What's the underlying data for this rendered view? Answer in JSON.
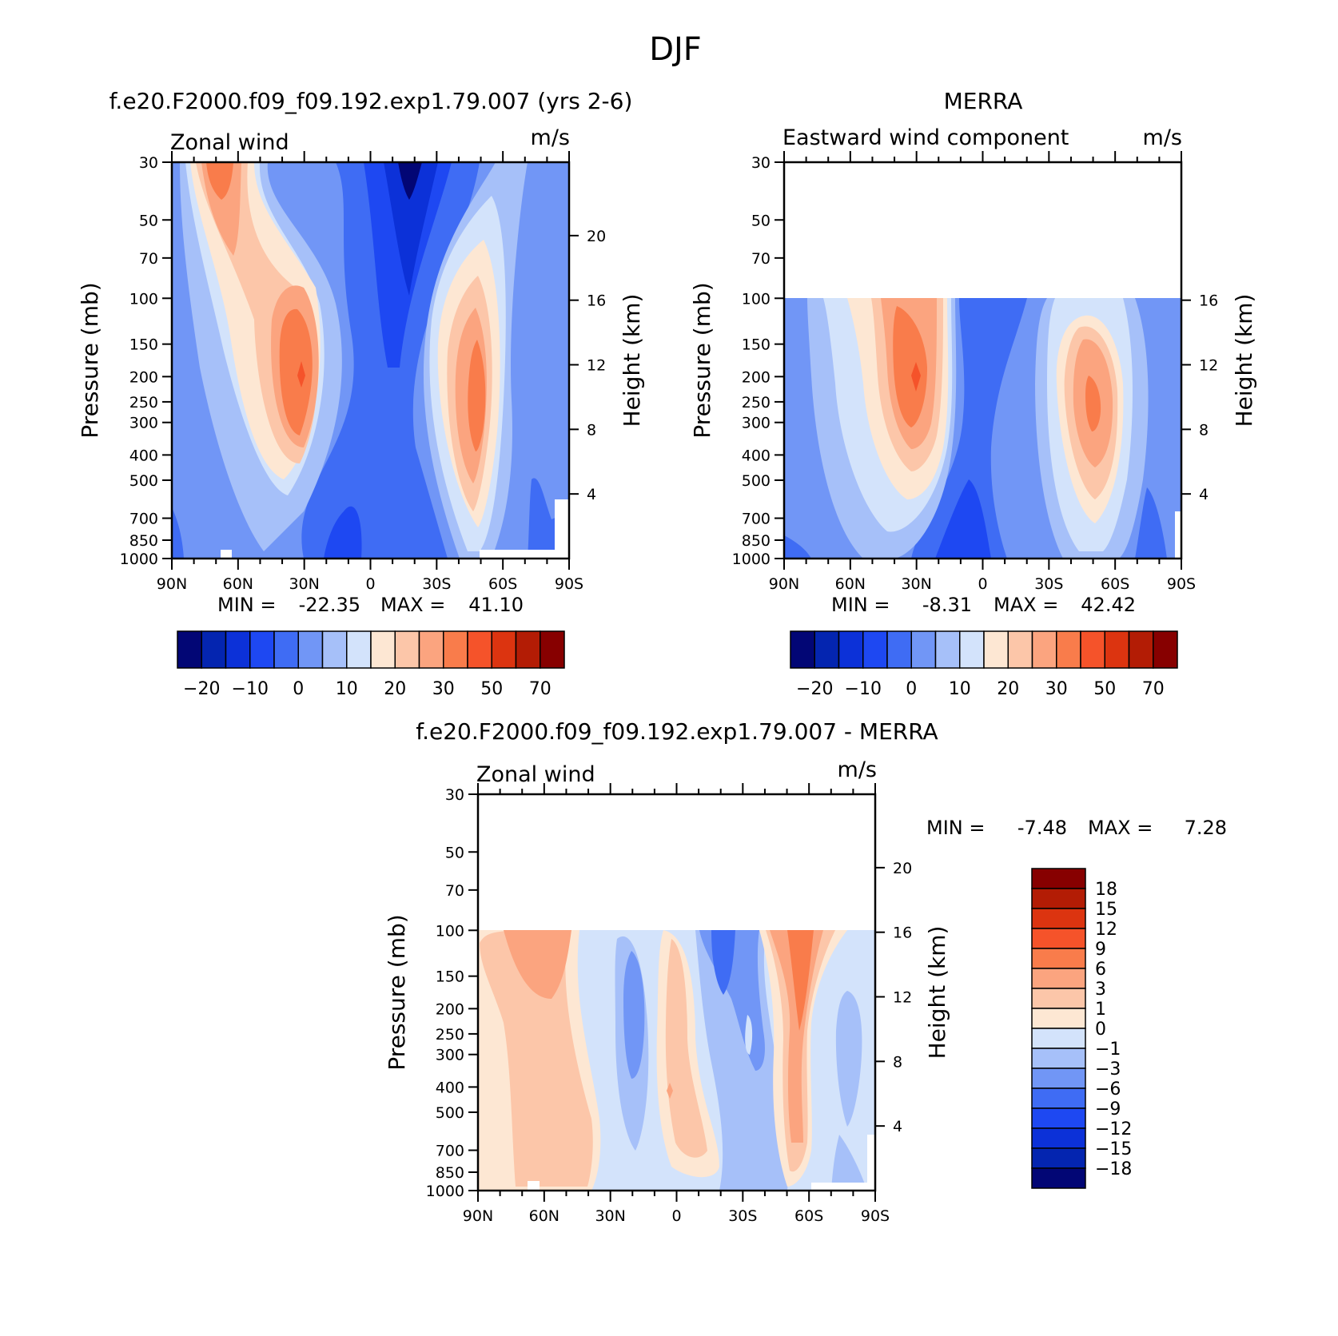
{
  "page_title": "DJF",
  "colors": {
    "neg": [
      "#020675",
      "#0425b0",
      "#0c31d8",
      "#1e48f2",
      "#3f6cf4",
      "#7196f6",
      "#a6c0f9",
      "#d3e3fb"
    ],
    "pos": [
      "#fde7d3",
      "#fcc6a9",
      "#fba47f",
      "#f97c4b",
      "#f5532a",
      "#dc3410",
      "#b31c05",
      "#870000"
    ]
  },
  "chart_data": [
    {
      "type": "heatmap",
      "panel_title": "f.e20.F2000.f09_f09.192.exp1.79.007 (yrs 2-6)",
      "left_label": "Zonal wind",
      "units": "m/s",
      "ylabel": "Pressure (mb)",
      "ylabel_right": "Height (km)",
      "y_ticks": [
        "30",
        "50",
        "70",
        "100",
        "150",
        "200",
        "250",
        "300",
        "400",
        "500",
        "700",
        "850",
        "1000"
      ],
      "y_right_ticks": [
        "20",
        "16",
        "12",
        "8",
        "4"
      ],
      "x_ticks": [
        "90N",
        "60N",
        "30N",
        "0",
        "30S",
        "60S",
        "90S"
      ],
      "min_label": "MIN =",
      "min_value": "-22.35",
      "max_label": "MAX =",
      "max_value": "41.10",
      "colorbar_labels": [
        "-20",
        "-10",
        "0",
        "10",
        "20",
        "30",
        "50",
        "70"
      ]
    },
    {
      "type": "heatmap",
      "panel_title": "MERRA",
      "left_label": "Eastward wind component",
      "units": "m/s",
      "ylabel": "Pressure (mb)",
      "ylabel_right": "Height (km)",
      "y_ticks": [
        "30",
        "50",
        "70",
        "100",
        "150",
        "200",
        "250",
        "300",
        "400",
        "500",
        "700",
        "850",
        "1000"
      ],
      "y_right_ticks": [
        "16",
        "12",
        "8",
        "4"
      ],
      "x_ticks": [
        "90N",
        "60N",
        "30N",
        "0",
        "30S",
        "60S",
        "90S"
      ],
      "min_label": "MIN =",
      "min_value": "-8.31",
      "max_label": "MAX =",
      "max_value": "42.42",
      "colorbar_labels": [
        "-20",
        "-10",
        "0",
        "10",
        "20",
        "30",
        "50",
        "70"
      ]
    },
    {
      "type": "heatmap",
      "panel_title": "f.e20.F2000.f09_f09.192.exp1.79.007 - MERRA",
      "left_label": "Zonal wind",
      "units": "m/s",
      "ylabel": "Pressure (mb)",
      "ylabel_right": "Height (km)",
      "y_ticks": [
        "30",
        "50",
        "70",
        "100",
        "150",
        "200",
        "250",
        "300",
        "400",
        "500",
        "700",
        "850",
        "1000"
      ],
      "y_right_ticks": [
        "20",
        "16",
        "12",
        "8",
        "4"
      ],
      "x_ticks": [
        "90N",
        "60N",
        "30N",
        "0",
        "30S",
        "60S",
        "90S"
      ],
      "min_label": "MIN =",
      "min_value": "-7.48",
      "max_label": "MAX =",
      "max_value": "7.28",
      "colorbar_labels": [
        "18",
        "15",
        "12",
        "9",
        "6",
        "3",
        "1",
        "0",
        "-1",
        "-3",
        "-6",
        "-9",
        "-12",
        "-15",
        "-18"
      ]
    }
  ]
}
